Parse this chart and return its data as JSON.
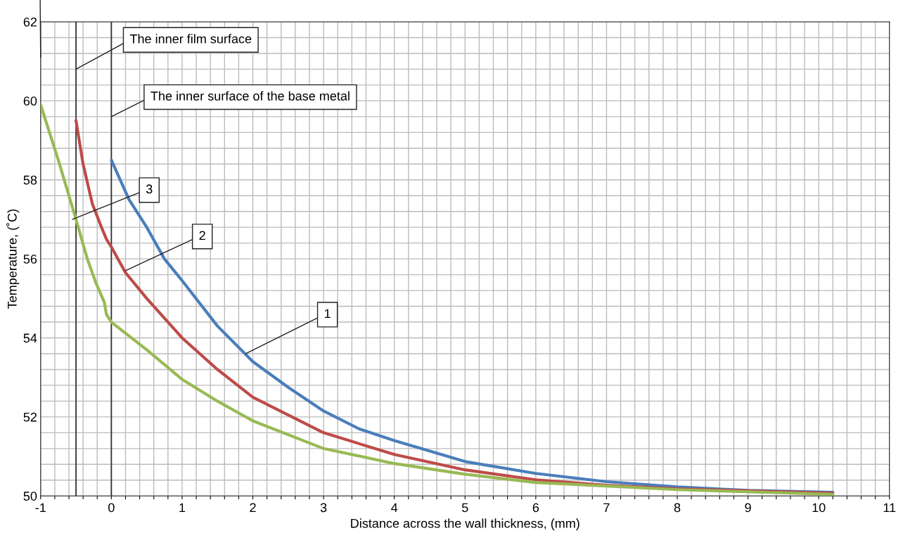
{
  "chart_data": {
    "type": "line",
    "xlabel": "Distance across the wall thickness, (mm)",
    "ylabel": "Temperature, (˚C)",
    "xlim": [
      -1,
      11
    ],
    "ylim": [
      50,
      62
    ],
    "xticks": [
      -1,
      {
        "value": -0.8,
        "label": null
      },
      {
        "value": -0.6,
        "label": null
      },
      {
        "value": -0.4,
        "label": null
      },
      {
        "value": -0.2,
        "label": null
      },
      0,
      {
        "value": 0.2,
        "label": null
      },
      {
        "value": 0.4,
        "label": null
      },
      {
        "value": 0.6,
        "label": null
      },
      {
        "value": 0.8,
        "label": null
      },
      1,
      {
        "value": 1.2,
        "label": null
      },
      {
        "value": 1.4,
        "label": null
      },
      {
        "value": 1.6,
        "label": null
      },
      {
        "value": 1.8,
        "label": null
      },
      2,
      {
        "value": 2.2,
        "label": null
      },
      {
        "value": 2.4,
        "label": null
      },
      {
        "value": 2.6,
        "label": null
      },
      {
        "value": 2.8,
        "label": null
      },
      3,
      {
        "value": 3.2,
        "label": null
      },
      {
        "value": 3.4,
        "label": null
      },
      {
        "value": 3.6,
        "label": null
      },
      {
        "value": 3.8,
        "label": null
      },
      4,
      {
        "value": 4.2,
        "label": null
      },
      {
        "value": 4.4,
        "label": null
      },
      {
        "value": 4.6,
        "label": null
      },
      {
        "value": 4.8,
        "label": null
      },
      5,
      {
        "value": 5.2,
        "label": null
      },
      {
        "value": 5.4,
        "label": null
      },
      {
        "value": 5.6,
        "label": null
      },
      {
        "value": 5.8,
        "label": null
      },
      6,
      {
        "value": 6.2,
        "label": null
      },
      {
        "value": 6.4,
        "label": null
      },
      {
        "value": 6.6,
        "label": null
      },
      {
        "value": 6.8,
        "label": null
      },
      7,
      {
        "value": 7.2,
        "label": null
      },
      {
        "value": 7.4,
        "label": null
      },
      {
        "value": 7.6,
        "label": null
      },
      {
        "value": 7.8,
        "label": null
      },
      8,
      {
        "value": 8.2,
        "label": null
      },
      {
        "value": 8.4,
        "label": null
      },
      {
        "value": 8.6,
        "label": null
      },
      {
        "value": 8.8,
        "label": null
      },
      9,
      {
        "value": 9.2,
        "label": null
      },
      {
        "value": 9.4,
        "label": null
      },
      {
        "value": 9.6,
        "label": null
      },
      {
        "value": 9.8,
        "label": null
      },
      10,
      {
        "value": 10.2,
        "label": null
      },
      {
        "value": 10.4,
        "label": null
      },
      {
        "value": 10.6,
        "label": null
      },
      {
        "value": 10.8,
        "label": null
      },
      11
    ],
    "yticks": [
      50,
      {
        "value": 50.4,
        "label": null
      },
      {
        "value": 50.8,
        "label": null
      },
      {
        "value": 51.2,
        "label": null
      },
      {
        "value": 51.6,
        "label": null
      },
      52,
      {
        "value": 52.4,
        "label": null
      },
      {
        "value": 52.8,
        "label": null
      },
      {
        "value": 53.2,
        "label": null
      },
      {
        "value": 53.6,
        "label": null
      },
      54,
      {
        "value": 54.4,
        "label": null
      },
      {
        "value": 54.8,
        "label": null
      },
      {
        "value": 55.2,
        "label": null
      },
      {
        "value": 55.6,
        "label": null
      },
      56,
      {
        "value": 56.4,
        "label": null
      },
      {
        "value": 56.8,
        "label": null
      },
      {
        "value": 57.2,
        "label": null
      },
      {
        "value": 57.6,
        "label": null
      },
      58,
      {
        "value": 58.4,
        "label": null
      },
      {
        "value": 58.8,
        "label": null
      },
      {
        "value": 59.2,
        "label": null
      },
      {
        "value": 59.6,
        "label": null
      },
      60,
      {
        "value": 60.4,
        "label": null
      },
      {
        "value": 60.8,
        "label": null
      },
      {
        "value": 61.2,
        "label": null
      },
      {
        "value": 61.6,
        "label": null
      },
      62
    ],
    "grid": true,
    "marker": "none",
    "line_style": "solid",
    "ref_lines": [
      {
        "axis": "x",
        "value": -0.5,
        "color": "#333333"
      },
      {
        "axis": "x",
        "value": 0,
        "color": "#333333"
      }
    ],
    "series": [
      {
        "color": "#4a7ebb",
        "x": [
          0,
          0.25,
          0.5,
          0.75,
          1,
          1.5,
          2,
          2.5,
          3,
          3.5,
          4,
          5,
          6,
          7,
          8,
          9,
          10.2
        ],
        "values": [
          58.5,
          57.5,
          56.8,
          56.0,
          55.45,
          54.3,
          53.4,
          52.75,
          52.15,
          51.7,
          51.4,
          50.87,
          50.57,
          50.36,
          50.23,
          50.14,
          50.09
        ]
      },
      {
        "color": "#be4b48",
        "x": [
          -0.5,
          -0.4,
          -0.27,
          -0.14,
          -0.07,
          0,
          0.2,
          0.5,
          1,
          1.5,
          2,
          2.5,
          3,
          4,
          5,
          6,
          7,
          8,
          10.2
        ],
        "values": [
          59.5,
          58.4,
          57.4,
          56.8,
          56.5,
          56.3,
          55.65,
          55.0,
          54.0,
          53.2,
          52.5,
          52.05,
          51.6,
          51.05,
          50.66,
          50.41,
          50.27,
          50.18,
          50.07
        ]
      },
      {
        "color": "#98b954",
        "x": [
          -1,
          -0.75,
          -0.5,
          -0.34,
          -0.22,
          -0.1,
          -0.07,
          0,
          0.5,
          1,
          1.5,
          2,
          2.5,
          3,
          4,
          5,
          6,
          7,
          8,
          10.2
        ],
        "values": [
          59.9,
          58.5,
          57.0,
          56.0,
          55.4,
          54.9,
          54.6,
          54.4,
          53.7,
          52.95,
          52.4,
          51.9,
          51.55,
          51.2,
          50.82,
          50.55,
          50.34,
          50.25,
          50.16,
          50.04
        ]
      }
    ],
    "annotations": [
      {
        "text": "The inner film surface",
        "x": -0.5,
        "y": 60.8
      },
      {
        "text": "The inner surface of the base metal",
        "x": 0,
        "y": 59.6
      },
      {
        "text": "3",
        "x": -0.55,
        "y": 57.0
      },
      {
        "text": "2",
        "x": 0.2,
        "y": 55.7
      },
      {
        "text": "1",
        "x": 1.9,
        "y": 53.6
      }
    ]
  }
}
